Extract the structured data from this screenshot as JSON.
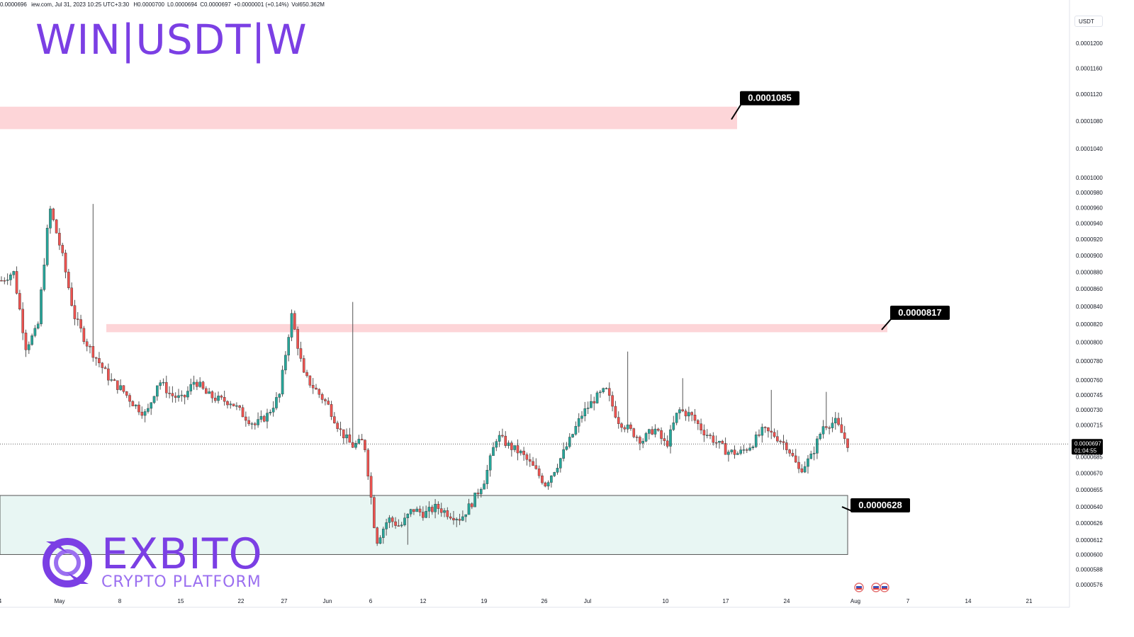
{
  "header": {
    "source": "iew.com, Jul 31, 2023 10:25 UTC+3:30",
    "open": "0.0000696",
    "high": "H0.0000700",
    "low": "L0.0000694",
    "close": "C0.0000697",
    "change": "+0.0000001 (+0.14%)",
    "volume": "Vol650.362M"
  },
  "title": "WIN|USDT|W",
  "price_unit": "USDT",
  "brand": {
    "name": "EXBITO",
    "tagline": "CRYPTO PLATFORM"
  },
  "colors": {
    "up": "#26a69a",
    "down": "#ef5350",
    "resistance_zone": "#fdd5d8",
    "support_zone": "#e8f6f3",
    "title": "#7b3fe4"
  },
  "chart_data": {
    "type": "candlestick",
    "title": "WIN|USDT|W",
    "y_scale": "log",
    "ylim": [
      5.65e-05,
      0.0001225
    ],
    "y_ticks": [
      "0.0001200",
      "0.0001160",
      "0.0001120",
      "0.0001080",
      "0.0001040",
      "0.0001000",
      "0.0000980",
      "0.0000960",
      "0.0000940",
      "0.0000920",
      "0.0000900",
      "0.0000880",
      "0.0000860",
      "0.0000840",
      "0.0000820",
      "0.0000800",
      "0.0000780",
      "0.0000760",
      "0.0000745",
      "0.0000730",
      "0.0000715",
      "0.0000685",
      "0.0000670",
      "0.0000655",
      "0.0000640",
      "0.0000626",
      "0.0000612",
      "0.0000600",
      "0.0000588",
      "0.0000576"
    ],
    "x_ticks": [
      "4",
      "May",
      "8",
      "15",
      "22",
      "27",
      "Jun",
      "6",
      "12",
      "19",
      "26",
      "Jul",
      "10",
      "17",
      "24",
      "Aug",
      "7",
      "14",
      "21"
    ],
    "current_price": {
      "value": "0.0000697",
      "countdown": "01:04:55"
    },
    "zones": [
      {
        "type": "resistance",
        "from": 0.0001068,
        "to": 0.0001101,
        "label": "0.0001085"
      },
      {
        "type": "resistance",
        "from": 8.11e-05,
        "to": 8.2e-05,
        "label": "0.0000817"
      },
      {
        "type": "support",
        "from": 6e-05,
        "to": 6.5e-05,
        "label": "0.0000628"
      }
    ],
    "price_path": [
      [
        8.7e-05,
        8.8e-05,
        7.95e-05,
        8.15e-05,
        9.6e-05,
        9.02e-05,
        8.3e-05,
        8e-05,
        7.8e-05,
        7.6e-05,
        7.5e-05,
        7.35e-05,
        7.25e-05,
        7.6e-05,
        7.45e-05,
        7.4e-05,
        7.6e-05,
        7.45e-05,
        7.4e-05,
        7.38e-05,
        7.25e-05,
        7.15e-05,
        7.25e-05,
        7.45e-05,
        8.3e-05,
        7.65e-05,
        7.5e-05,
        7.35e-05,
        7.1e-05,
        6.95e-05,
        7e-05,
        6.1e-05,
        6.3e-05,
        6.23e-05,
        6.38e-05,
        6.34e-05,
        6.4e-05,
        6.34e-05,
        6.3e-05,
        6.45e-05,
        6.65e-05,
        7.05e-05,
        6.95e-05,
        6.88e-05,
        6.75e-05,
        6.6e-05,
        6.78e-05,
        7e-05,
        7.25e-05,
        7.4e-05,
        7.5e-05,
        7.2e-05,
        7.1e-05,
        7e-05,
        7.12e-05,
        6.95e-05,
        7.3e-05,
        7.25e-05,
        7.1e-05,
        7e-05,
        6.9e-05,
        6.88e-05,
        6.96e-05,
        7.1e-05,
        7.05e-05,
        6.95e-05,
        6.72e-05,
        6.85e-05,
        7.15e-05,
        7.18e-05,
        6.97e-05
      ]
    ]
  }
}
